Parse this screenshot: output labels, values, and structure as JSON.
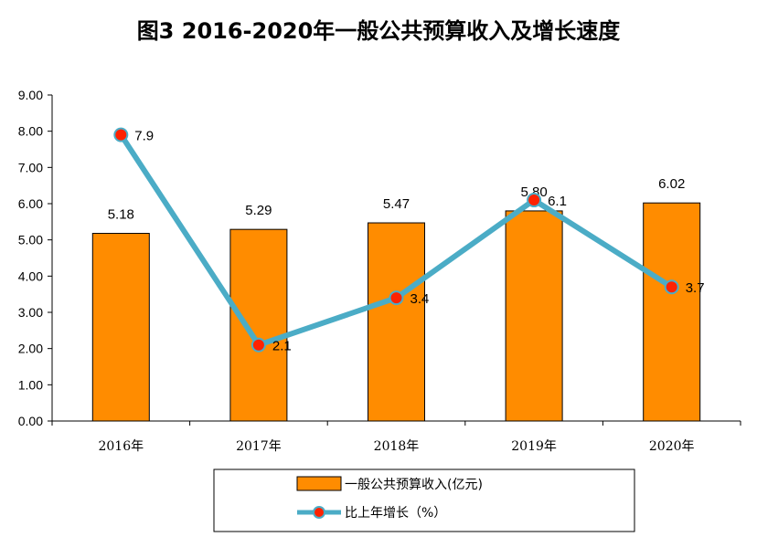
{
  "chart_data": {
    "type": "bar",
    "title": "图3  2016-2020年一般公共预算收入及增长速度",
    "categories": [
      "2016年",
      "2017年",
      "2018年",
      "2019年",
      "2020年"
    ],
    "ylim": [
      0,
      9
    ],
    "yticks": [
      "0.00",
      "1.00",
      "2.00",
      "3.00",
      "4.00",
      "5.00",
      "6.00",
      "7.00",
      "8.00",
      "9.00"
    ],
    "series": [
      {
        "name": "一般公共预算收入(亿元)",
        "type": "bar",
        "values": [
          5.18,
          5.29,
          5.47,
          5.8,
          6.02
        ],
        "labels": [
          "5.18",
          "5.29",
          "5.47",
          "5.80",
          "6.02"
        ],
        "color": "#FF8C00"
      },
      {
        "name": "比上年增长（%）",
        "type": "line",
        "values": [
          7.9,
          2.1,
          3.4,
          6.1,
          3.7
        ],
        "labels": [
          "7.9",
          "2.1",
          "3.4",
          "6.1",
          "3.7"
        ],
        "color": "#4BACC6",
        "marker_color": "#FF2200"
      }
    ],
    "legend_position": "bottom",
    "grid": false
  }
}
